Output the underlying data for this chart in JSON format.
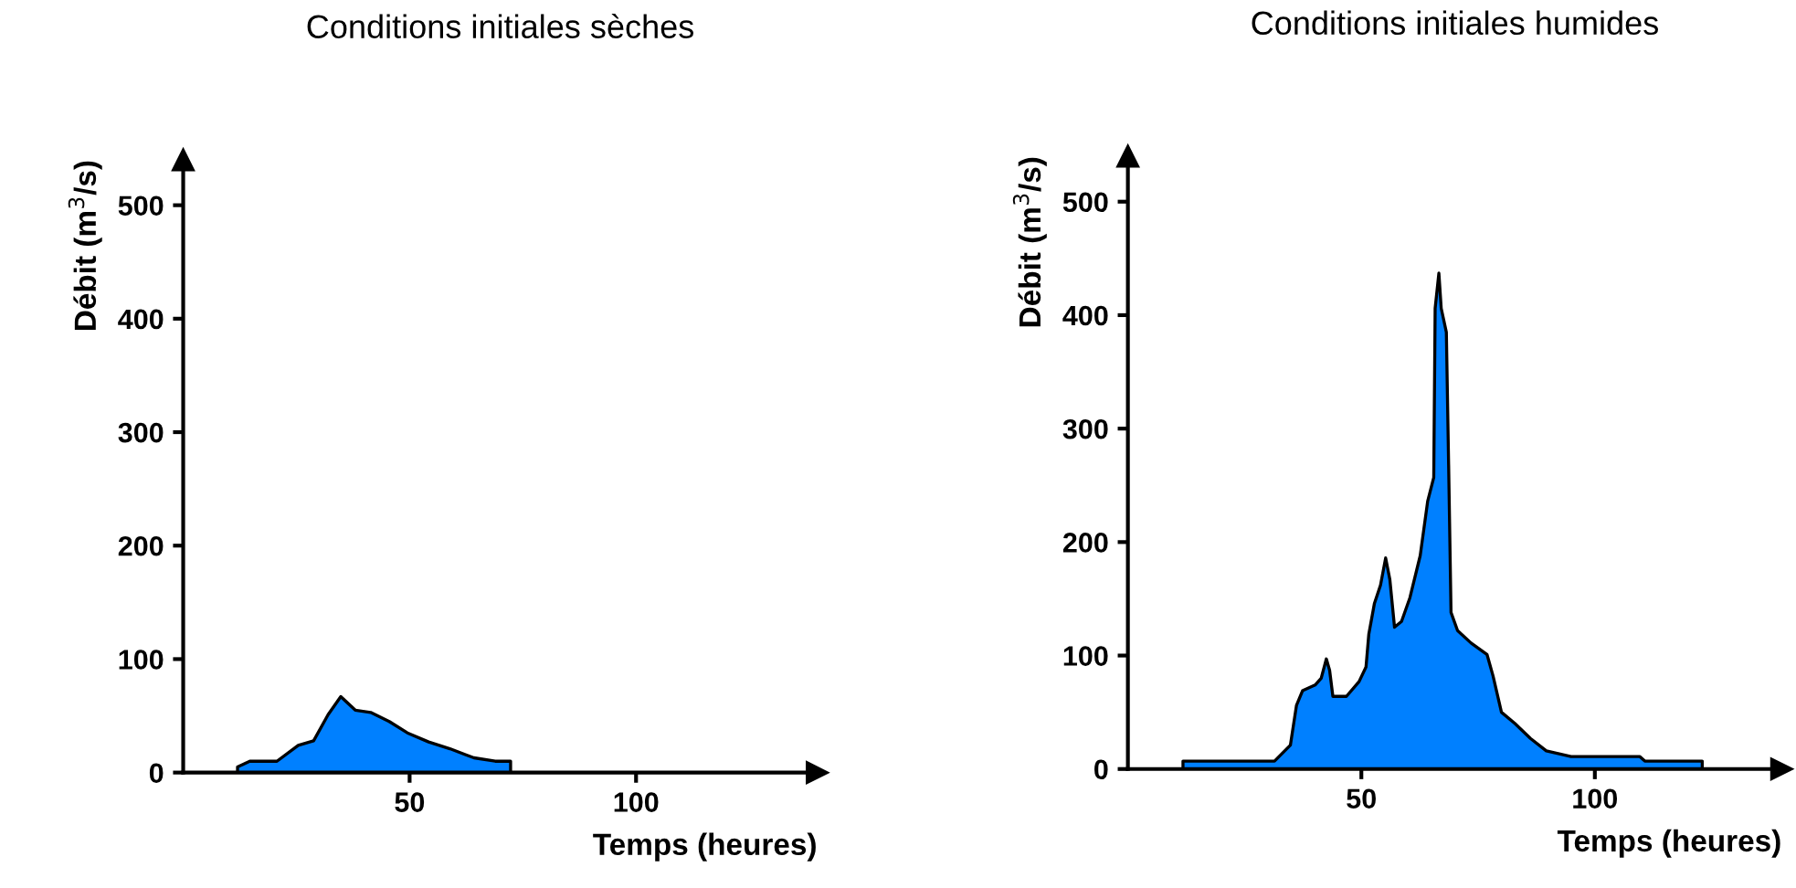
{
  "chart_data": [
    {
      "type": "area",
      "title": "Conditions initiales sèches",
      "xlabel": "Temps (heures)",
      "ylabel": "Débit (m$^{3}$/s)",
      "xlim": [
        0,
        140
      ],
      "ylim": [
        0,
        540
      ],
      "xticks": [
        50,
        100
      ],
      "yticks": [
        0,
        100,
        200,
        300,
        400,
        500
      ],
      "grid": false,
      "series": [
        {
          "color": "#0080ff",
          "x": [
            12,
            14.7,
            20.7,
            25.4,
            28.8,
            32,
            34.8,
            38,
            41.4,
            45.5,
            49.5,
            54.2,
            58.9,
            64.2,
            68.9,
            72.3
          ],
          "values": [
            5,
            10,
            10,
            24,
            28,
            51,
            67,
            55,
            53,
            45,
            35,
            27,
            21,
            13,
            10,
            10
          ]
        }
      ]
    },
    {
      "type": "area",
      "title": "Conditions initiales humides",
      "xlabel": "Temps (heures)",
      "ylabel": "Débit (m$^{3}$/s)",
      "xlim": [
        0,
        140
      ],
      "ylim": [
        0,
        540
      ],
      "xticks": [
        50,
        100
      ],
      "yticks": [
        0,
        100,
        200,
        300,
        400,
        500
      ],
      "grid": false,
      "series": [
        {
          "color": "#0080ff",
          "x": [
            11.8,
            31.4,
            34.8,
            36.1,
            37.4,
            40.1,
            41.4,
            42.5,
            43.2,
            43.9,
            46.8,
            49.5,
            51,
            51.6,
            52.8,
            54.1,
            55.2,
            56.1,
            57.1,
            58.6,
            60.4,
            62.6,
            64.2,
            65.5,
            65.8,
            66.6,
            67.1,
            68.2,
            68.7,
            69.2,
            70.6,
            73.5,
            76.9,
            78.2,
            80,
            82.9,
            86.2,
            89.6,
            94.9,
            109.6,
            110.7,
            123
          ],
          "values": [
            7,
            7,
            21,
            56,
            69,
            74,
            80,
            97,
            87,
            64,
            64,
            77,
            90,
            119,
            146,
            162,
            186,
            167,
            125,
            130,
            151,
            188,
            236,
            257,
            406,
            437,
            406,
            385,
            265,
            138,
            122,
            111,
            101,
            82,
            50,
            40,
            27,
            16,
            11,
            11,
            7,
            7
          ]
        }
      ]
    }
  ]
}
